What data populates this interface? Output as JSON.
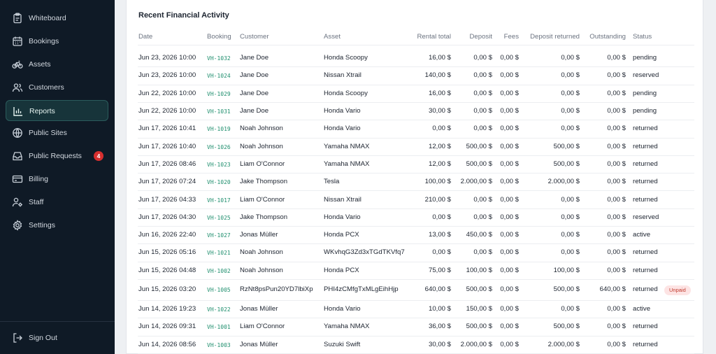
{
  "sidebar": {
    "items": [
      {
        "label": "Whiteboard",
        "icon": "clipboard-icon"
      },
      {
        "label": "Bookings",
        "icon": "calendar-icon"
      },
      {
        "label": "Assets",
        "icon": "bicycle-icon"
      },
      {
        "label": "Customers",
        "icon": "users-icon"
      },
      {
        "label": "Reports",
        "icon": "bar-chart-icon",
        "active": true
      },
      {
        "label": "Public Sites",
        "icon": "globe-icon"
      },
      {
        "label": "Public Requests",
        "icon": "inbox-icon",
        "badge": "4"
      },
      {
        "label": "Billing",
        "icon": "credit-card-icon"
      },
      {
        "label": "Staff",
        "icon": "user-gear-icon"
      },
      {
        "label": "Settings",
        "icon": "gear-icon"
      }
    ],
    "sign_out": "Sign Out"
  },
  "colors": {
    "sidebar_bg": "#0f1a26",
    "active_bg": "#17343a",
    "booking_code": "#1f8f6e",
    "badge": "#d62f2f",
    "unpaid": "#c0392b"
  },
  "report": {
    "title": "Recent Financial Activity",
    "columns": [
      "Date",
      "Booking",
      "Customer",
      "Asset",
      "Rental total",
      "Deposit",
      "Fees",
      "Deposit returned",
      "Outstanding",
      "Status"
    ],
    "rows": [
      {
        "date": "Jun 23, 2026 10:00",
        "booking": "VH-1032",
        "customer": "Jane Doe",
        "asset": "Honda Scoopy",
        "rental_total": "16,00 $",
        "deposit": "0,00 $",
        "fees": "0,00 $",
        "deposit_returned": "0,00 $",
        "outstanding": "0,00 $",
        "status": "pending"
      },
      {
        "date": "Jun 23, 2026 10:00",
        "booking": "VH-1024",
        "customer": "Jane Doe",
        "asset": "Nissan Xtrail",
        "rental_total": "140,00 $",
        "deposit": "0,00 $",
        "fees": "0,00 $",
        "deposit_returned": "0,00 $",
        "outstanding": "0,00 $",
        "status": "reserved"
      },
      {
        "date": "Jun 22, 2026 10:00",
        "booking": "VH-1029",
        "customer": "Jane Doe",
        "asset": "Honda Scoopy",
        "rental_total": "16,00 $",
        "deposit": "0,00 $",
        "fees": "0,00 $",
        "deposit_returned": "0,00 $",
        "outstanding": "0,00 $",
        "status": "pending"
      },
      {
        "date": "Jun 22, 2026 10:00",
        "booking": "VH-1031",
        "customer": "Jane Doe",
        "asset": "Honda Vario",
        "rental_total": "30,00 $",
        "deposit": "0,00 $",
        "fees": "0,00 $",
        "deposit_returned": "0,00 $",
        "outstanding": "0,00 $",
        "status": "pending"
      },
      {
        "date": "Jun 17, 2026 10:41",
        "booking": "VH-1019",
        "customer": "Noah Johnson",
        "asset": "Honda Vario",
        "rental_total": "0,00 $",
        "deposit": "0,00 $",
        "fees": "0,00 $",
        "deposit_returned": "0,00 $",
        "outstanding": "0,00 $",
        "status": "returned"
      },
      {
        "date": "Jun 17, 2026 10:40",
        "booking": "VH-1026",
        "customer": "Noah Johnson",
        "asset": "Yamaha NMAX",
        "rental_total": "12,00 $",
        "deposit": "500,00 $",
        "fees": "0,00 $",
        "deposit_returned": "500,00 $",
        "outstanding": "0,00 $",
        "status": "returned"
      },
      {
        "date": "Jun 17, 2026 08:46",
        "booking": "VH-1023",
        "customer": "Liam O'Connor",
        "asset": "Yamaha NMAX",
        "rental_total": "12,00 $",
        "deposit": "500,00 $",
        "fees": "0,00 $",
        "deposit_returned": "500,00 $",
        "outstanding": "0,00 $",
        "status": "returned"
      },
      {
        "date": "Jun 17, 2026 07:24",
        "booking": "VH-1020",
        "customer": "Jake Thompson",
        "asset": "Tesla",
        "rental_total": "100,00 $",
        "deposit": "2.000,00 $",
        "fees": "0,00 $",
        "deposit_returned": "2.000,00 $",
        "outstanding": "0,00 $",
        "status": "returned"
      },
      {
        "date": "Jun 17, 2026 04:33",
        "booking": "VH-1017",
        "customer": "Liam O'Connor",
        "asset": "Nissan Xtrail",
        "rental_total": "210,00 $",
        "deposit": "0,00 $",
        "fees": "0,00 $",
        "deposit_returned": "0,00 $",
        "outstanding": "0,00 $",
        "status": "returned"
      },
      {
        "date": "Jun 17, 2026 04:30",
        "booking": "VH-1025",
        "customer": "Jake Thompson",
        "asset": "Honda Vario",
        "rental_total": "0,00 $",
        "deposit": "0,00 $",
        "fees": "0,00 $",
        "deposit_returned": "0,00 $",
        "outstanding": "0,00 $",
        "status": "reserved"
      },
      {
        "date": "Jun 16, 2026 22:40",
        "booking": "VH-1027",
        "customer": "Jonas Müller",
        "asset": "Honda PCX",
        "rental_total": "13,00 $",
        "deposit": "450,00 $",
        "fees": "0,00 $",
        "deposit_returned": "0,00 $",
        "outstanding": "0,00 $",
        "status": "active"
      },
      {
        "date": "Jun 15, 2026 05:16",
        "booking": "VH-1021",
        "customer": "Noah Johnson",
        "asset": "WKvhqG3Zd3xTGdTKVfq7",
        "rental_total": "0,00 $",
        "deposit": "0,00 $",
        "fees": "0,00 $",
        "deposit_returned": "0,00 $",
        "outstanding": "0,00 $",
        "status": "returned"
      },
      {
        "date": "Jun 15, 2026 04:48",
        "booking": "VH-1002",
        "customer": "Noah Johnson",
        "asset": "Honda PCX",
        "rental_total": "75,00 $",
        "deposit": "100,00 $",
        "fees": "0,00 $",
        "deposit_returned": "100,00 $",
        "outstanding": "0,00 $",
        "status": "returned"
      },
      {
        "date": "Jun 15, 2026 03:20",
        "booking": "VH-1005",
        "customer": "RzNt8psPun20YD7lbiXp",
        "asset": "PHI4zCMfgTxMLgEihHjp",
        "rental_total": "640,00 $",
        "deposit": "500,00 $",
        "fees": "0,00 $",
        "deposit_returned": "500,00 $",
        "outstanding": "640,00 $",
        "status": "returned",
        "tag": "Unpaid"
      },
      {
        "date": "Jun 14, 2026 19:23",
        "booking": "VH-1022",
        "customer": "Jonas Müller",
        "asset": "Honda Vario",
        "rental_total": "10,00 $",
        "deposit": "150,00 $",
        "fees": "0,00 $",
        "deposit_returned": "0,00 $",
        "outstanding": "0,00 $",
        "status": "active"
      },
      {
        "date": "Jun 14, 2026 09:31",
        "booking": "VH-1001",
        "customer": "Liam O'Connor",
        "asset": "Yamaha NMAX",
        "rental_total": "36,00 $",
        "deposit": "500,00 $",
        "fees": "0,00 $",
        "deposit_returned": "500,00 $",
        "outstanding": "0,00 $",
        "status": "returned"
      },
      {
        "date": "Jun 14, 2026 08:56",
        "booking": "VH-1003",
        "customer": "Jonas Müller",
        "asset": "Suzuki Swift",
        "rental_total": "30,00 $",
        "deposit": "2.000,00 $",
        "fees": "0,00 $",
        "deposit_returned": "2.000,00 $",
        "outstanding": "0,00 $",
        "status": "returned"
      }
    ]
  }
}
